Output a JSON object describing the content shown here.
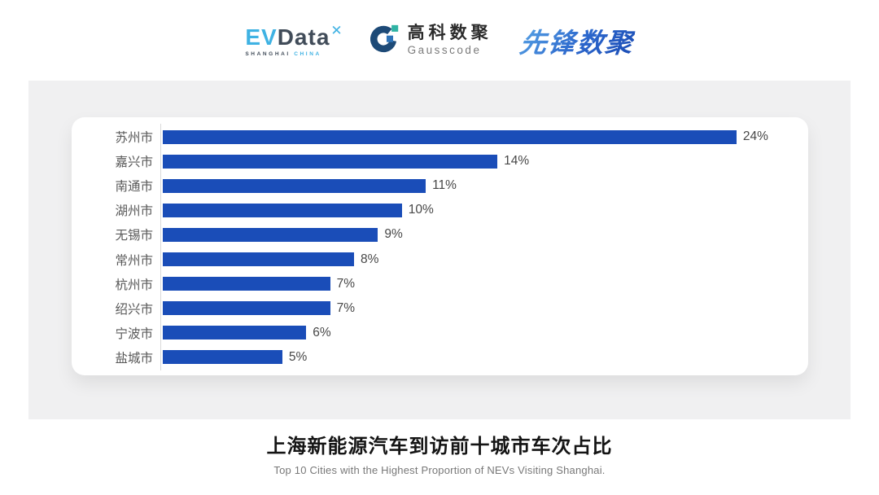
{
  "header": {
    "logos": {
      "evdata": {
        "ev": "EV",
        "data": "Data",
        "spark_icon": "four-point-star",
        "sub_left": "SHANGHAI",
        "sub_right": "CHINA",
        "color_light_blue": "#3fb2e3",
        "color_dark": "#414c59"
      },
      "gausscode": {
        "cn": "高科数聚",
        "en": "Gausscode",
        "mark_navy": "#1d4a77",
        "mark_teal": "#2fb3a4",
        "mark_blue": "#2e73b8"
      },
      "xianfeng": {
        "text": "先锋数聚",
        "color": "#2b66cc"
      }
    }
  },
  "chart_data": {
    "type": "bar",
    "orientation": "horizontal",
    "categories": [
      "苏州市",
      "嘉兴市",
      "南通市",
      "湖州市",
      "无锡市",
      "常州市",
      "杭州市",
      "绍兴市",
      "宁波市",
      "盐城市"
    ],
    "values": [
      24,
      14,
      11,
      10,
      9,
      8,
      7,
      7,
      6,
      5
    ],
    "value_labels": [
      "24%",
      "14%",
      "11%",
      "10%",
      "9%",
      "8%",
      "7%",
      "7%",
      "6%",
      "5%"
    ],
    "title": "上海新能源汽车到访前十城市车次占比",
    "subtitle": "Top 10 Cities with the Highest Proportion of  NEVs Visiting Shanghai.",
    "xlabel": "",
    "ylabel": "",
    "xlim": [
      0,
      27
    ],
    "bar_color": "#1a4db8",
    "grid": false,
    "legend": "none"
  },
  "colors": {
    "panel_bg": "#f0f0f1",
    "card_bg": "#ffffff",
    "axis_line": "#d9d9d9",
    "category_label": "#595959",
    "value_label": "#474747"
  }
}
